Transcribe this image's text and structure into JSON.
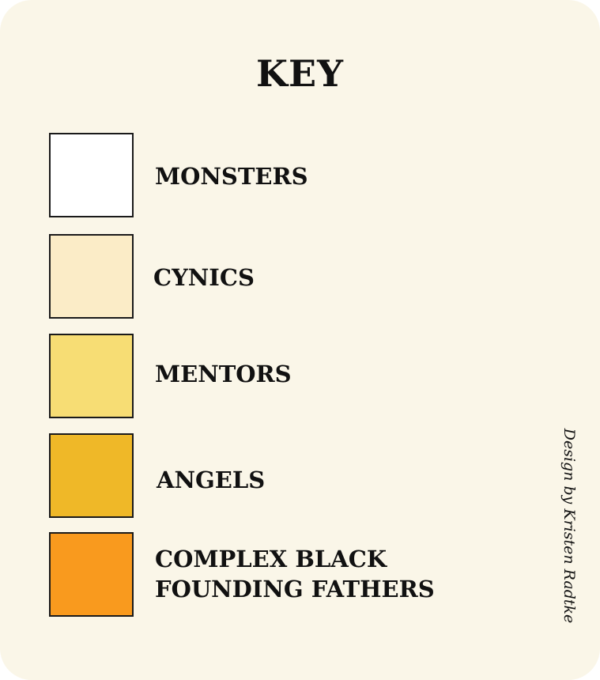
{
  "title": "KEY",
  "items": [
    {
      "label": "MONSTERS",
      "color": "#ffffff"
    },
    {
      "label": "CYNICS",
      "color": "#fbecc7"
    },
    {
      "label": "MENTORS",
      "color": "#f7dd74"
    },
    {
      "label": "ANGELS",
      "color": "#efb828"
    },
    {
      "label_line1": "COMPLEX BLACK",
      "label_line2": "FOUNDING FATHERS",
      "color": "#f99a1e"
    }
  ],
  "credit": "Design by Kristen Radtke",
  "background_color": "#faf6e8"
}
